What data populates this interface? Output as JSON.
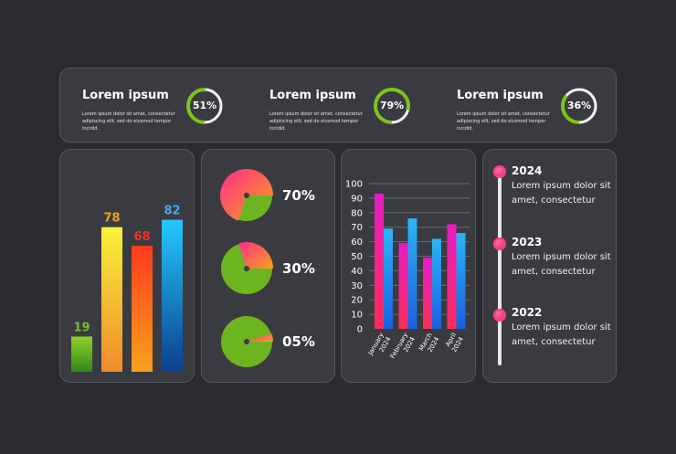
{
  "kpis": [
    {
      "title": "Lorem ipsum",
      "description": "Lorem ipsum dolor sit amet, consectetur adipiscing elit, sed do eiusmod tempor incidid.",
      "percent_label": "51%",
      "fraction": 0.51
    },
    {
      "title": "Lorem ipsum",
      "description": "Lorem ipsum dolor sit amet, consectetur adipiscing elit, sed do eiusmod tempor incidid.",
      "percent_label": "79%",
      "fraction": 0.79
    },
    {
      "title": "Lorem ipsum",
      "description": "Lorem ipsum dolor sit amet, consectetur adipiscing elit, sed do eiusmod tempor incidid.",
      "percent_label": "36%",
      "fraction": 0.36
    }
  ],
  "colors": {
    "ring": "#7cc41f",
    "ring_track": "#2b2c31",
    "label_19": "#6fbf2a",
    "label_78": "#f2a31b",
    "label_68": "#f0321e",
    "label_82": "#4aa8f0",
    "pink": "#ff2d8a",
    "blue": "#2196f3",
    "timeline_dot": "#ff2d7a"
  },
  "chart_data": [
    {
      "type": "bar",
      "categories": [
        "",
        "",
        "",
        ""
      ],
      "values": [
        19,
        78,
        68,
        82
      ],
      "data_labels": [
        "19",
        "78",
        "68",
        "82"
      ],
      "ylim": [
        0,
        100
      ]
    },
    {
      "type": "pie",
      "items": [
        {
          "label": "70%",
          "value": 70
        },
        {
          "label": "30%",
          "value": 30
        },
        {
          "label": "05%",
          "value": 5
        }
      ]
    },
    {
      "type": "bar",
      "categories": [
        "January 2024",
        "February 2024",
        "March 2024",
        "April 2024"
      ],
      "series": [
        {
          "values": [
            93,
            59,
            49,
            72
          ]
        },
        {
          "values": [
            69,
            76,
            62,
            66
          ]
        }
      ],
      "yticks": [
        "0",
        "10",
        "20",
        "30",
        "40",
        "50",
        "60",
        "70",
        "80",
        "90",
        "100"
      ],
      "ylim": [
        0,
        100
      ],
      "grid": true
    }
  ],
  "timeline": [
    {
      "year": "2024",
      "text": "Lorem ipsum dolor sit amet, consectetur"
    },
    {
      "year": "2023",
      "text": "Lorem ipsum dolor sit amet, consectetur"
    },
    {
      "year": "2022",
      "text": "Lorem ipsum dolor sit amet, consectetur"
    }
  ]
}
